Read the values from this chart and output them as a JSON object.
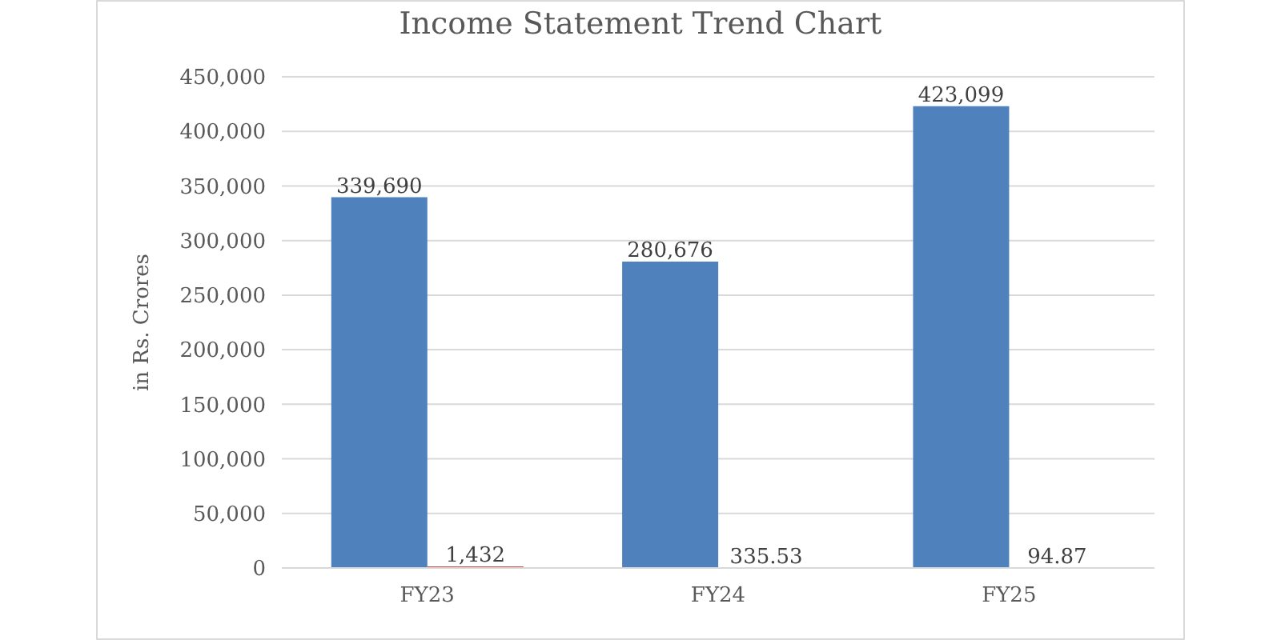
{
  "chart_data": {
    "type": "bar",
    "title": "Income Statement Trend Chart",
    "ylabel": "in Rs. Crores",
    "categories": [
      "FY23",
      "FY24",
      "FY25"
    ],
    "series": [
      {
        "color": "#4f81bd",
        "values": [
          339690,
          280676,
          423099
        ],
        "value_labels": [
          "339,690",
          "280,676",
          "423,099"
        ]
      },
      {
        "color": "#c0504d",
        "values": [
          1432,
          335.53,
          94.87
        ],
        "value_labels": [
          "1,432",
          "335.53",
          "94.87"
        ]
      }
    ],
    "ylim": [
      0,
      450000
    ],
    "yticks": [
      {
        "value": 0,
        "label": "0"
      },
      {
        "value": 50000,
        "label": "50,000"
      },
      {
        "value": 100000,
        "label": "100,000"
      },
      {
        "value": 150000,
        "label": "150,000"
      },
      {
        "value": 200000,
        "label": "200,000"
      },
      {
        "value": 250000,
        "label": "250,000"
      },
      {
        "value": 300000,
        "label": "300,000"
      },
      {
        "value": 350000,
        "label": "350,000"
      },
      {
        "value": 400000,
        "label": "400,000"
      },
      {
        "value": 450000,
        "label": "450,000"
      }
    ],
    "grid": "y",
    "legend": false
  }
}
